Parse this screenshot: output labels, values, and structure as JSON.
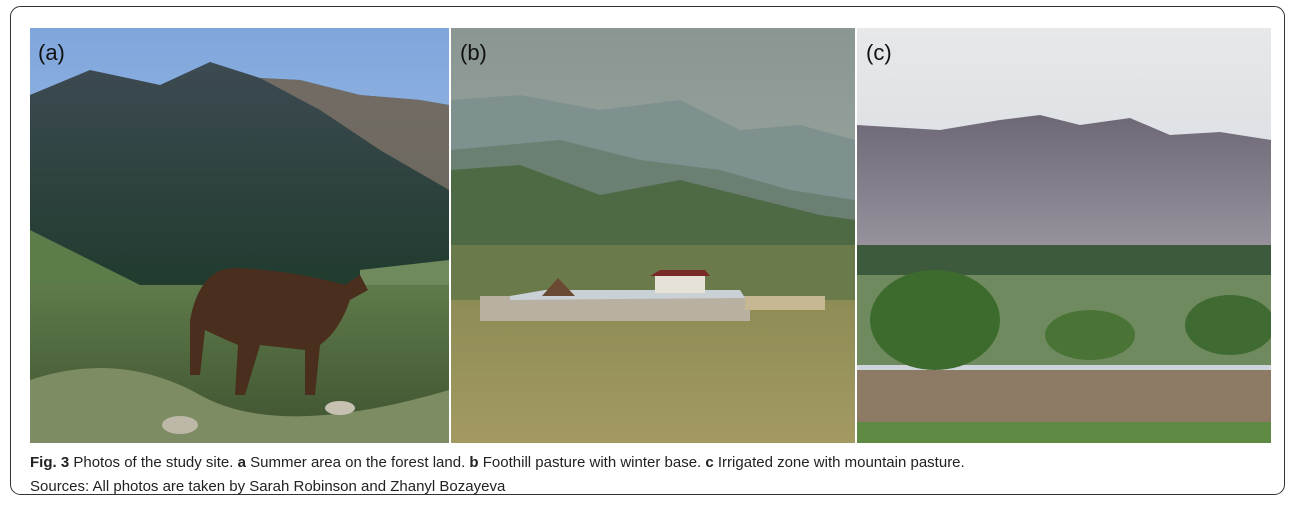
{
  "figure": {
    "panels": [
      {
        "label": "(a)"
      },
      {
        "label": "(b)"
      },
      {
        "label": "(c)"
      }
    ],
    "caption": {
      "figure_label": "Fig. 3",
      "intro": "Photos of the study site.",
      "items": [
        {
          "letter": "a",
          "text": "Summer area on the forest land."
        },
        {
          "letter": "b",
          "text": "Foothill pasture with winter base."
        },
        {
          "letter": "c",
          "text": "Irrigated zone with mountain pasture."
        }
      ],
      "sources": "Sources: All photos are taken by Sarah Robinson and Zhanyl Bozayeva"
    }
  }
}
